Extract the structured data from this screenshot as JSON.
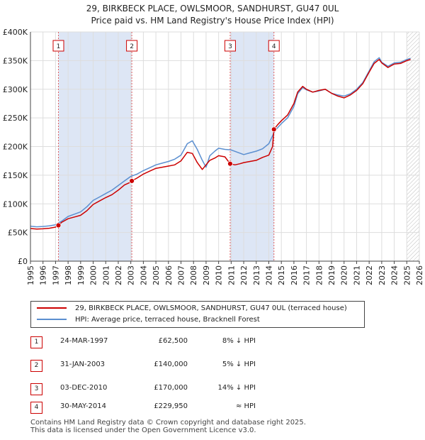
{
  "header": {
    "title_line1": "29, BIRKBECK PLACE, OWLSMOOR, SANDHURST, GU47 0UL",
    "title_line2": "Price paid vs. HM Land Registry's House Price Index (HPI)"
  },
  "colors": {
    "property": "#cc0000",
    "hpi": "#5b8fd0",
    "shade": "#dde6f5",
    "vline": "#e06060",
    "grid": "#dddddd",
    "axis": "#444444"
  },
  "chart_data": {
    "type": "line",
    "title": "Price paid vs. HM Land Registry's House Price Index (HPI)",
    "xlabel": "",
    "ylabel": "",
    "xlim": [
      1995,
      2026
    ],
    "ylim": [
      0,
      400000
    ],
    "grid": true,
    "y_ticks": [
      {
        "value": 0,
        "label": "£0"
      },
      {
        "value": 50000,
        "label": "£50K"
      },
      {
        "value": 100000,
        "label": "£100K"
      },
      {
        "value": 150000,
        "label": "£150K"
      },
      {
        "value": 200000,
        "label": "£200K"
      },
      {
        "value": 250000,
        "label": "£250K"
      },
      {
        "value": 300000,
        "label": "£300K"
      },
      {
        "value": 350000,
        "label": "£350K"
      },
      {
        "value": 400000,
        "label": "£400K"
      }
    ],
    "x_ticks": [
      1995,
      1996,
      1997,
      1998,
      1999,
      2000,
      2001,
      2002,
      2003,
      2004,
      2005,
      2006,
      2007,
      2008,
      2009,
      2010,
      2011,
      2012,
      2013,
      2014,
      2015,
      2016,
      2017,
      2018,
      2019,
      2020,
      2021,
      2022,
      2023,
      2024,
      2025,
      2026
    ],
    "shaded_ranges": [
      [
        1997.23,
        2003.08
      ],
      [
        2010.92,
        2014.41
      ]
    ],
    "future_hatch_from": 2025.0,
    "series": [
      {
        "name": "29, BIRKBECK PLACE, OWLSMOOR, SANDHURST, GU47 0UL (terraced house)",
        "color_key": "property",
        "x": [
          1995.0,
          1995.5,
          1996.0,
          1996.5,
          1997.0,
          1997.23,
          1997.5,
          1998.0,
          1998.5,
          1999.0,
          1999.5,
          2000.0,
          2000.5,
          2001.0,
          2001.5,
          2002.0,
          2002.5,
          2003.0,
          2003.08,
          2003.5,
          2004.0,
          2004.5,
          2005.0,
          2005.5,
          2006.0,
          2006.5,
          2007.0,
          2007.5,
          2007.9,
          2008.3,
          2008.7,
          2009.0,
          2009.3,
          2009.7,
          2010.0,
          2010.5,
          2010.92,
          2011.3,
          2011.7,
          2012.0,
          2012.5,
          2013.0,
          2013.5,
          2014.0,
          2014.3,
          2014.41,
          2014.7,
          2015.0,
          2015.5,
          2016.0,
          2016.3,
          2016.7,
          2017.0,
          2017.5,
          2018.0,
          2018.5,
          2019.0,
          2019.5,
          2020.0,
          2020.5,
          2021.0,
          2021.5,
          2022.0,
          2022.4,
          2022.8,
          2023.0,
          2023.5,
          2024.0,
          2024.5,
          2025.0,
          2025.3
        ],
        "values": [
          57000,
          56000,
          56500,
          57500,
          59500,
          62500,
          68000,
          74000,
          77000,
          80000,
          88000,
          99000,
          105000,
          111000,
          116000,
          124000,
          133000,
          138000,
          140000,
          145000,
          152000,
          157000,
          162000,
          164000,
          166000,
          168000,
          175000,
          190000,
          188000,
          172000,
          160000,
          168000,
          176000,
          180000,
          184000,
          182000,
          170000,
          168000,
          170000,
          172000,
          174000,
          176000,
          181000,
          185000,
          200000,
          229950,
          238000,
          245000,
          255000,
          275000,
          295000,
          305000,
          300000,
          295000,
          298000,
          300000,
          293000,
          288000,
          285000,
          290000,
          298000,
          310000,
          330000,
          345000,
          352000,
          346000,
          338000,
          344000,
          345000,
          350000,
          352000
        ]
      },
      {
        "name": "HPI: Average price, terraced house, Bracknell Forest",
        "color_key": "hpi",
        "x": [
          1995.0,
          1995.5,
          1996.0,
          1996.5,
          1997.0,
          1997.5,
          1998.0,
          1998.5,
          1999.0,
          1999.5,
          2000.0,
          2000.5,
          2001.0,
          2001.5,
          2002.0,
          2002.5,
          2003.0,
          2003.5,
          2004.0,
          2004.5,
          2005.0,
          2005.5,
          2006.0,
          2006.5,
          2007.0,
          2007.5,
          2007.9,
          2008.3,
          2008.7,
          2009.0,
          2009.3,
          2009.7,
          2010.0,
          2010.5,
          2011.0,
          2011.5,
          2012.0,
          2012.5,
          2013.0,
          2013.5,
          2014.0,
          2014.5,
          2015.0,
          2015.5,
          2016.0,
          2016.3,
          2016.7,
          2017.0,
          2017.5,
          2018.0,
          2018.5,
          2019.0,
          2019.5,
          2020.0,
          2020.5,
          2021.0,
          2021.5,
          2022.0,
          2022.4,
          2022.8,
          2023.0,
          2023.5,
          2024.0,
          2024.5,
          2025.0,
          2025.3
        ],
        "values": [
          61000,
          60000,
          60500,
          61500,
          63500,
          70000,
          78000,
          82000,
          86000,
          95000,
          106000,
          112000,
          118000,
          124000,
          132000,
          140000,
          148000,
          152000,
          158000,
          163000,
          168000,
          171000,
          174000,
          178000,
          185000,
          205000,
          210000,
          195000,
          176000,
          164000,
          184000,
          192000,
          197000,
          195000,
          194000,
          190000,
          186000,
          189000,
          192000,
          196000,
          205000,
          228000,
          240000,
          250000,
          270000,
          292000,
          303000,
          299000,
          295000,
          297000,
          300000,
          293000,
          290000,
          288000,
          292000,
          300000,
          312000,
          332000,
          348000,
          355000,
          347000,
          340000,
          346000,
          347000,
          352000,
          354000
        ]
      }
    ],
    "sales": [
      {
        "num": "1",
        "x": 1997.23,
        "price": 62500
      },
      {
        "num": "2",
        "x": 2003.08,
        "price": 140000
      },
      {
        "num": "3",
        "x": 2010.92,
        "price": 170000
      },
      {
        "num": "4",
        "x": 2014.41,
        "price": 229950
      }
    ]
  },
  "legend": {
    "property_label": "29, BIRKBECK PLACE, OWLSMOOR, SANDHURST, GU47 0UL (terraced house)",
    "hpi_label": "HPI: Average price, terraced house, Bracknell Forest"
  },
  "sales_table": [
    {
      "num": "1",
      "date": "24-MAR-1997",
      "price": "£62,500",
      "hpi": "8% ↓ HPI"
    },
    {
      "num": "2",
      "date": "31-JAN-2003",
      "price": "£140,000",
      "hpi": "5% ↓ HPI"
    },
    {
      "num": "3",
      "date": "03-DEC-2010",
      "price": "£170,000",
      "hpi": "14% ↓ HPI"
    },
    {
      "num": "4",
      "date": "30-MAY-2014",
      "price": "£229,950",
      "hpi": "≈ HPI"
    }
  ],
  "footer": {
    "line1": "Contains HM Land Registry data © Crown copyright and database right 2025.",
    "line2": "This data is licensed under the Open Government Licence v3.0."
  }
}
